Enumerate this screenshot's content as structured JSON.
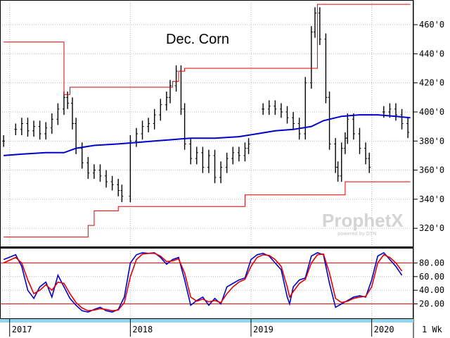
{
  "chart_data": [
    {
      "type": "ohlc",
      "title": "Dec. Corn",
      "price_axis": {
        "ticks": [
          "320'0",
          "340'0",
          "360'0",
          "380'0",
          "400'0",
          "420'0",
          "440'0",
          "460'0"
        ],
        "ylim": [
          308,
          476
        ]
      },
      "time_axis": {
        "labels": [
          "2017",
          "2018",
          "2019",
          "2020"
        ],
        "interval": "1 Wk"
      },
      "series": [
        {
          "kind": "price_bars",
          "color": "#000000",
          "points": [
            [
              2016.95,
              380
            ],
            [
              2017.05,
              388
            ],
            [
              2017.1,
              392
            ],
            [
              2017.15,
              387
            ],
            [
              2017.2,
              390
            ],
            [
              2017.25,
              385
            ],
            [
              2017.3,
              389
            ],
            [
              2017.35,
              395
            ],
            [
              2017.4,
              402
            ],
            [
              2017.45,
              410
            ],
            [
              2017.48,
              406
            ],
            [
              2017.52,
              392
            ],
            [
              2017.55,
              375
            ],
            [
              2017.6,
              365
            ],
            [
              2017.65,
              358
            ],
            [
              2017.7,
              360
            ],
            [
              2017.75,
              356
            ],
            [
              2017.8,
              352
            ],
            [
              2017.85,
              350
            ],
            [
              2017.9,
              346
            ],
            [
              2017.93,
              342
            ],
            [
              2018.0,
              380
            ],
            [
              2018.05,
              385
            ],
            [
              2018.1,
              390
            ],
            [
              2018.15,
              392
            ],
            [
              2018.2,
              398
            ],
            [
              2018.25,
              405
            ],
            [
              2018.3,
              410
            ],
            [
              2018.33,
              418
            ],
            [
              2018.38,
              428
            ],
            [
              2018.42,
              402
            ],
            [
              2018.45,
              378
            ],
            [
              2018.5,
              368
            ],
            [
              2018.55,
              372
            ],
            [
              2018.6,
              362
            ],
            [
              2018.65,
              370
            ],
            [
              2018.7,
              355
            ],
            [
              2018.75,
              362
            ],
            [
              2018.8,
              368
            ],
            [
              2018.85,
              372
            ],
            [
              2018.9,
              370
            ],
            [
              2018.95,
              375
            ],
            [
              2018.98,
              378
            ],
            [
              2019.1,
              402
            ],
            [
              2019.15,
              404
            ],
            [
              2019.2,
              402
            ],
            [
              2019.25,
              400
            ],
            [
              2019.3,
              396
            ],
            [
              2019.35,
              392
            ],
            [
              2019.4,
              385
            ],
            [
              2019.45,
              420
            ],
            [
              2019.5,
              455
            ],
            [
              2019.53,
              468
            ],
            [
              2019.57,
              450
            ],
            [
              2019.62,
              410
            ],
            [
              2019.65,
              378
            ],
            [
              2019.7,
              362
            ],
            [
              2019.72,
              356
            ],
            [
              2019.75,
              375
            ],
            [
              2019.78,
              382
            ],
            [
              2019.8,
              395
            ],
            [
              2019.85,
              385
            ],
            [
              2019.9,
              375
            ],
            [
              2019.95,
              368
            ],
            [
              2019.98,
              362
            ],
            [
              2020.1,
              400
            ],
            [
              2020.15,
              402
            ],
            [
              2020.2,
              398
            ],
            [
              2020.25,
              392
            ],
            [
              2020.3,
              386
            ]
          ]
        },
        {
          "kind": "moving_average",
          "color": "#0000cc",
          "points": [
            [
              2016.95,
              370
            ],
            [
              2017.1,
              371
            ],
            [
              2017.3,
              372
            ],
            [
              2017.45,
              372
            ],
            [
              2017.55,
              375
            ],
            [
              2017.7,
              377
            ],
            [
              2017.9,
              378
            ],
            [
              2018.05,
              379
            ],
            [
              2018.2,
              380
            ],
            [
              2018.35,
              381
            ],
            [
              2018.5,
              382
            ],
            [
              2018.7,
              382
            ],
            [
              2018.9,
              383
            ],
            [
              2019.05,
              385
            ],
            [
              2019.2,
              387
            ],
            [
              2019.35,
              388
            ],
            [
              2019.5,
              390
            ],
            [
              2019.6,
              394
            ],
            [
              2019.75,
              397
            ],
            [
              2019.9,
              398
            ],
            [
              2020.05,
              398
            ],
            [
              2020.2,
              397
            ],
            [
              2020.32,
              396
            ]
          ]
        },
        {
          "kind": "upper_channel",
          "color": "#e00000",
          "points": [
            [
              2016.95,
              448
            ],
            [
              2017.45,
              448
            ],
            [
              2017.45,
              412
            ],
            [
              2017.5,
              412
            ],
            [
              2017.5,
              417
            ],
            [
              2018.35,
              417
            ],
            [
              2018.35,
              421
            ],
            [
              2018.4,
              421
            ],
            [
              2018.4,
              428
            ],
            [
              2018.45,
              428
            ],
            [
              2018.45,
              430
            ],
            [
              2019.55,
              430
            ],
            [
              2019.55,
              474
            ],
            [
              2020.32,
              474
            ]
          ]
        },
        {
          "kind": "lower_channel",
          "color": "#e00000",
          "points": [
            [
              2016.95,
              314
            ],
            [
              2017.65,
              314
            ],
            [
              2017.65,
              322
            ],
            [
              2017.7,
              322
            ],
            [
              2017.7,
              332
            ],
            [
              2017.9,
              332
            ],
            [
              2017.9,
              335
            ],
            [
              2018.95,
              335
            ],
            [
              2018.95,
              343
            ],
            [
              2019.78,
              343
            ],
            [
              2019.78,
              352
            ],
            [
              2020.32,
              352
            ]
          ]
        }
      ]
    },
    {
      "type": "line",
      "title": "",
      "y_axis": {
        "ticks": [
          "20.00",
          "40.00",
          "60.00",
          "80.00"
        ],
        "ylim": [
          0,
          100
        ]
      },
      "reference_lines": [
        20,
        80
      ],
      "series": [
        {
          "color": "#0000cc",
          "points": [
            [
              2016.95,
              85
            ],
            [
              2017.05,
              92
            ],
            [
              2017.1,
              75
            ],
            [
              2017.15,
              40
            ],
            [
              2017.2,
              28
            ],
            [
              2017.25,
              45
            ],
            [
              2017.3,
              52
            ],
            [
              2017.35,
              30
            ],
            [
              2017.4,
              62
            ],
            [
              2017.45,
              45
            ],
            [
              2017.5,
              28
            ],
            [
              2017.55,
              18
            ],
            [
              2017.6,
              10
            ],
            [
              2017.65,
              8
            ],
            [
              2017.7,
              12
            ],
            [
              2017.75,
              15
            ],
            [
              2017.8,
              10
            ],
            [
              2017.85,
              8
            ],
            [
              2017.9,
              12
            ],
            [
              2017.95,
              30
            ],
            [
              2018.0,
              80
            ],
            [
              2018.05,
              92
            ],
            [
              2018.1,
              95
            ],
            [
              2018.15,
              94
            ],
            [
              2018.2,
              95
            ],
            [
              2018.25,
              88
            ],
            [
              2018.3,
              78
            ],
            [
              2018.35,
              85
            ],
            [
              2018.4,
              88
            ],
            [
              2018.45,
              55
            ],
            [
              2018.5,
              18
            ],
            [
              2018.55,
              25
            ],
            [
              2018.6,
              30
            ],
            [
              2018.65,
              18
            ],
            [
              2018.7,
              28
            ],
            [
              2018.75,
              20
            ],
            [
              2018.8,
              45
            ],
            [
              2018.85,
              50
            ],
            [
              2018.9,
              55
            ],
            [
              2018.95,
              58
            ],
            [
              2019.0,
              85
            ],
            [
              2019.05,
              92
            ],
            [
              2019.1,
              94
            ],
            [
              2019.15,
              90
            ],
            [
              2019.2,
              80
            ],
            [
              2019.25,
              70
            ],
            [
              2019.3,
              30
            ],
            [
              2019.32,
              20
            ],
            [
              2019.35,
              45
            ],
            [
              2019.4,
              55
            ],
            [
              2019.45,
              58
            ],
            [
              2019.5,
              90
            ],
            [
              2019.55,
              95
            ],
            [
              2019.6,
              92
            ],
            [
              2019.65,
              50
            ],
            [
              2019.7,
              15
            ],
            [
              2019.75,
              20
            ],
            [
              2019.8,
              25
            ],
            [
              2019.85,
              30
            ],
            [
              2019.9,
              32
            ],
            [
              2019.95,
              30
            ],
            [
              2020.0,
              55
            ],
            [
              2020.05,
              90
            ],
            [
              2020.1,
              95
            ],
            [
              2020.15,
              85
            ],
            [
              2020.2,
              75
            ],
            [
              2020.25,
              62
            ]
          ]
        },
        {
          "color": "#e00000",
          "points": [
            [
              2016.95,
              80
            ],
            [
              2017.05,
              88
            ],
            [
              2017.1,
              80
            ],
            [
              2017.15,
              55
            ],
            [
              2017.2,
              35
            ],
            [
              2017.25,
              40
            ],
            [
              2017.3,
              48
            ],
            [
              2017.35,
              40
            ],
            [
              2017.4,
              52
            ],
            [
              2017.45,
              50
            ],
            [
              2017.5,
              35
            ],
            [
              2017.55,
              22
            ],
            [
              2017.6,
              14
            ],
            [
              2017.65,
              10
            ],
            [
              2017.7,
              11
            ],
            [
              2017.75,
              13
            ],
            [
              2017.8,
              12
            ],
            [
              2017.85,
              10
            ],
            [
              2017.9,
              11
            ],
            [
              2017.95,
              22
            ],
            [
              2018.0,
              60
            ],
            [
              2018.05,
              85
            ],
            [
              2018.1,
              93
            ],
            [
              2018.15,
              94
            ],
            [
              2018.2,
              94
            ],
            [
              2018.25,
              90
            ],
            [
              2018.3,
              82
            ],
            [
              2018.35,
              83
            ],
            [
              2018.4,
              86
            ],
            [
              2018.45,
              65
            ],
            [
              2018.5,
              30
            ],
            [
              2018.55,
              24
            ],
            [
              2018.6,
              27
            ],
            [
              2018.65,
              23
            ],
            [
              2018.7,
              25
            ],
            [
              2018.75,
              22
            ],
            [
              2018.8,
              35
            ],
            [
              2018.85,
              45
            ],
            [
              2018.9,
              52
            ],
            [
              2018.95,
              56
            ],
            [
              2019.0,
              75
            ],
            [
              2019.05,
              88
            ],
            [
              2019.1,
              92
            ],
            [
              2019.15,
              91
            ],
            [
              2019.2,
              85
            ],
            [
              2019.25,
              75
            ],
            [
              2019.3,
              45
            ],
            [
              2019.32,
              30
            ],
            [
              2019.35,
              38
            ],
            [
              2019.4,
              50
            ],
            [
              2019.45,
              56
            ],
            [
              2019.5,
              80
            ],
            [
              2019.55,
              92
            ],
            [
              2019.6,
              93
            ],
            [
              2019.65,
              65
            ],
            [
              2019.7,
              28
            ],
            [
              2019.75,
              22
            ],
            [
              2019.8,
              24
            ],
            [
              2019.85,
              28
            ],
            [
              2019.9,
              30
            ],
            [
              2019.95,
              31
            ],
            [
              2020.0,
              45
            ],
            [
              2020.05,
              80
            ],
            [
              2020.1,
              92
            ],
            [
              2020.15,
              88
            ],
            [
              2020.2,
              80
            ],
            [
              2020.25,
              68
            ]
          ]
        }
      ]
    }
  ],
  "colors": {
    "grid": "#b8b8b8",
    "frame": "#000000",
    "time_strip": "#8fd6ea"
  },
  "watermark": {
    "brand": "ProphetX",
    "tagline": "powered by DTN"
  }
}
